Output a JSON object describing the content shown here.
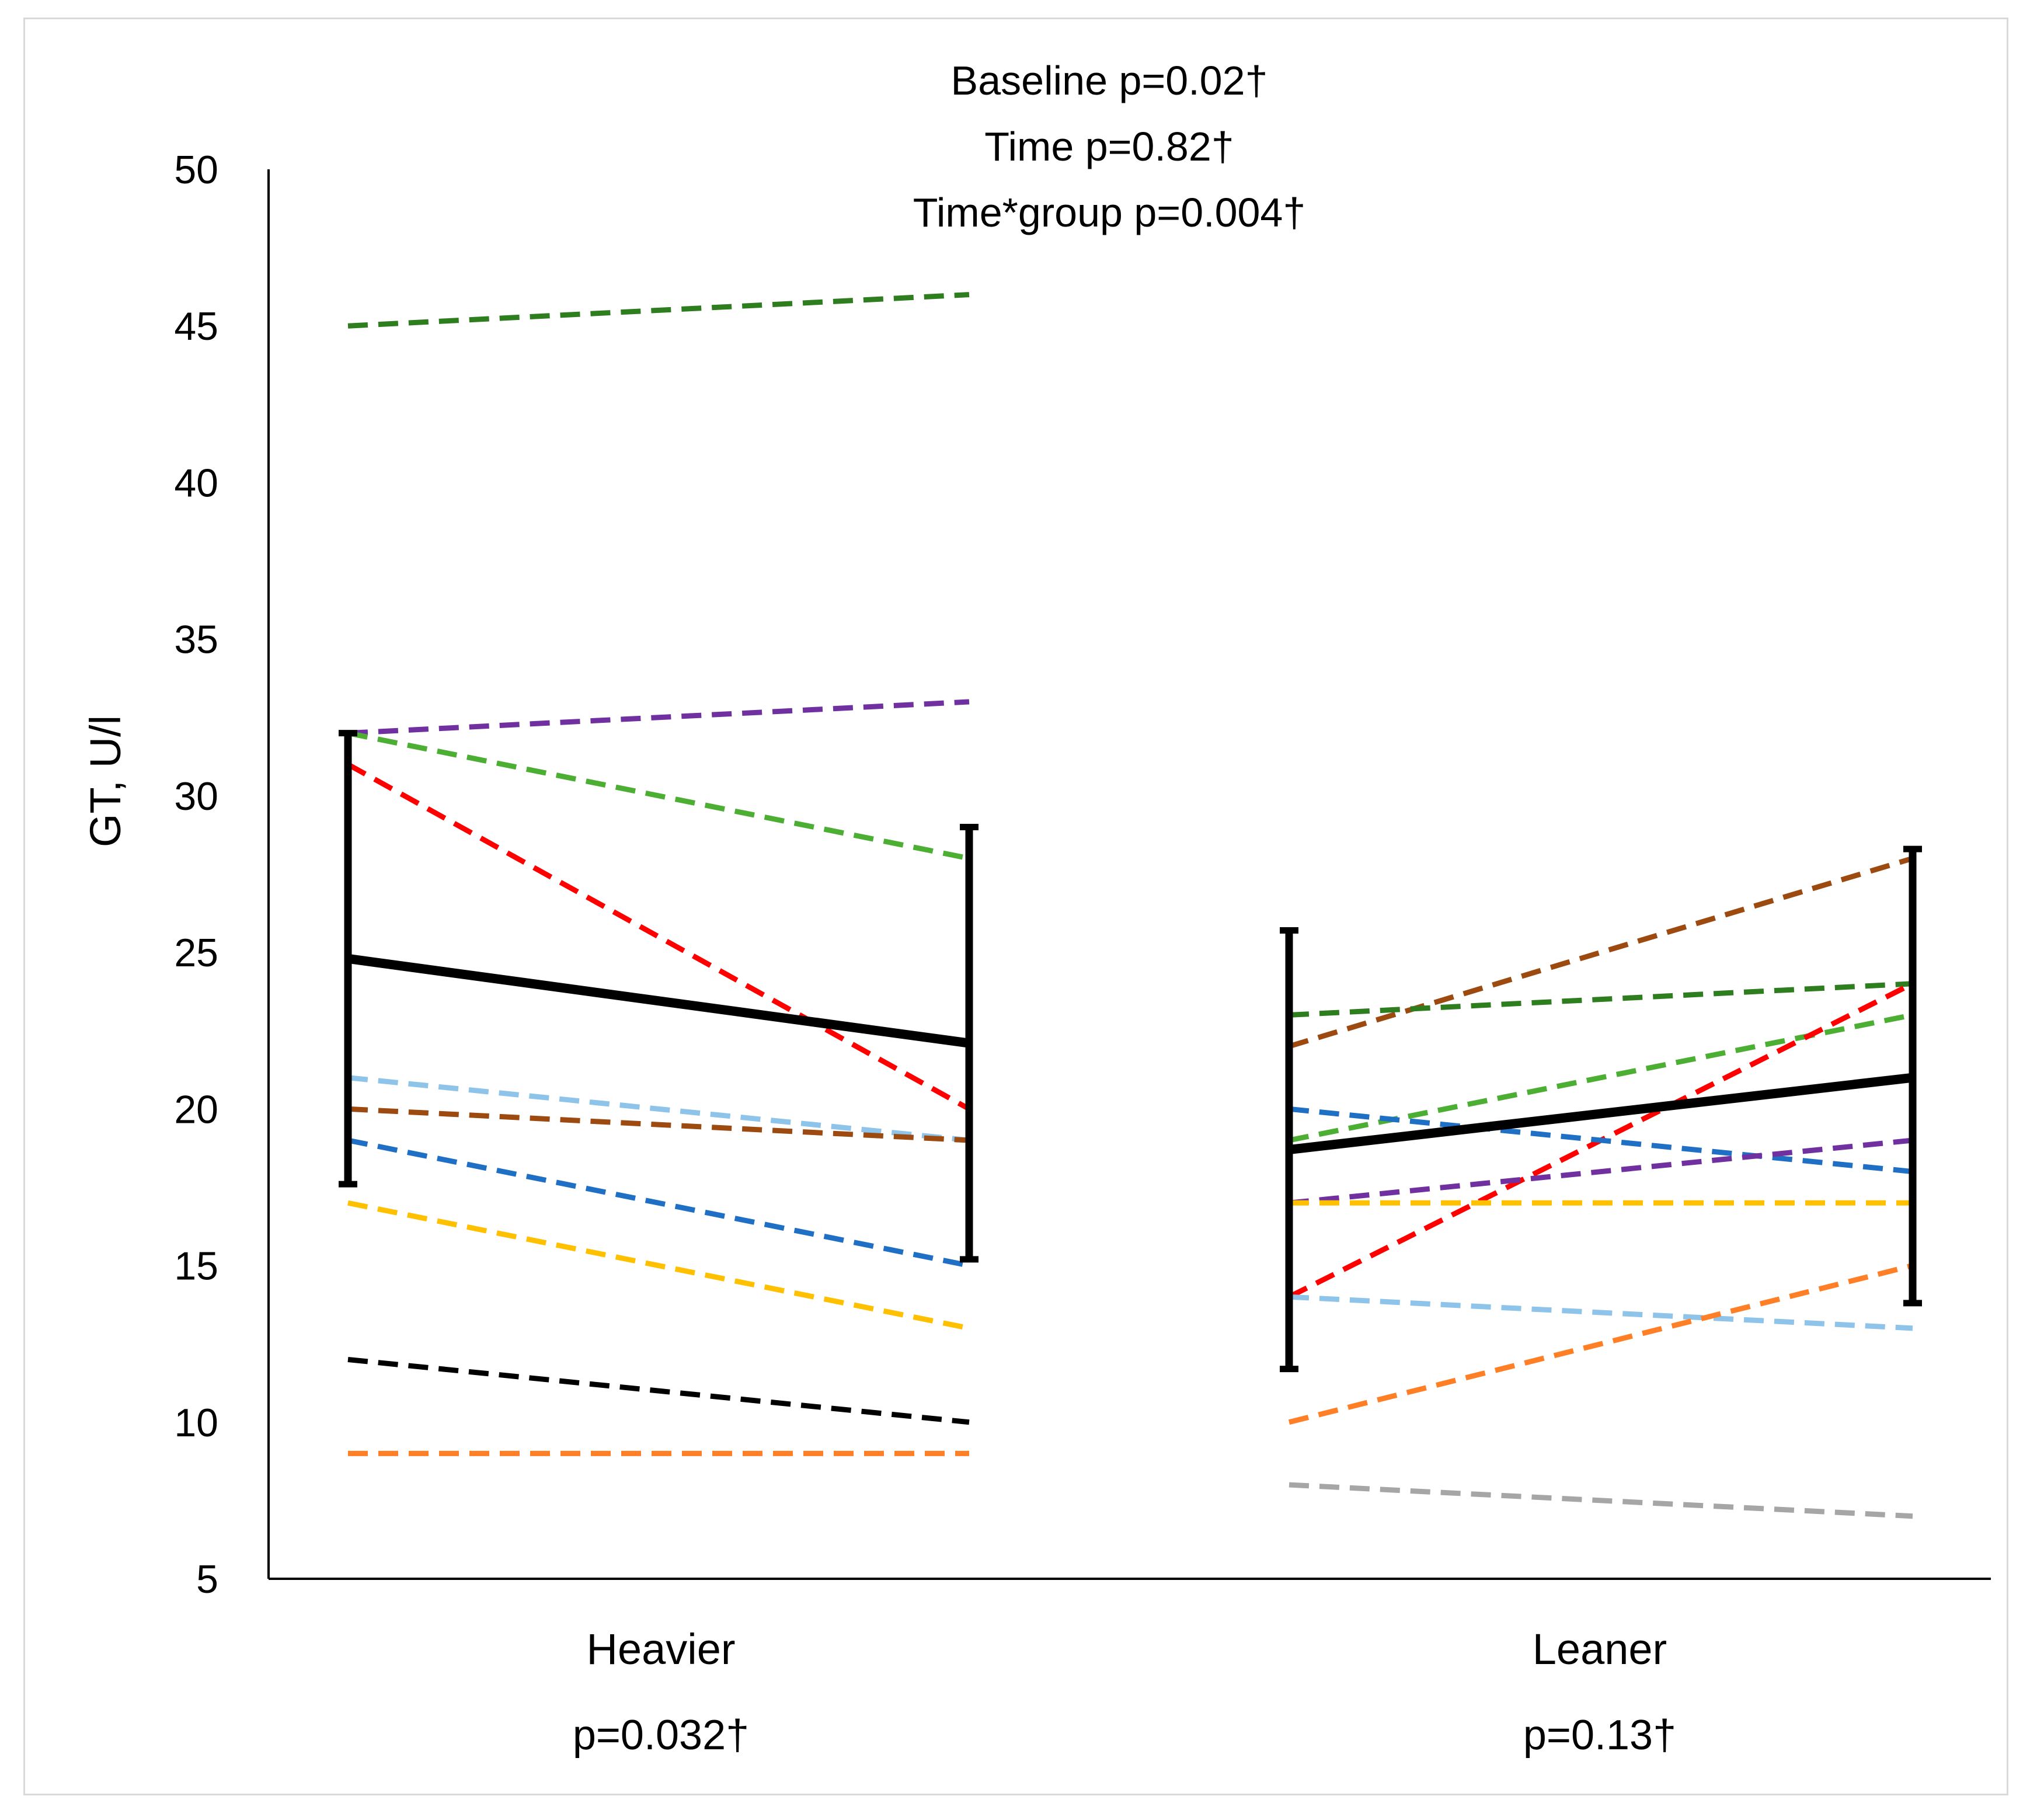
{
  "chart_data": {
    "type": "line",
    "title": "",
    "ylabel": "GT, U/l",
    "xlabel": "",
    "ylim": [
      5,
      50
    ],
    "yticks": [
      5,
      10,
      15,
      20,
      25,
      30,
      35,
      40,
      45,
      50
    ],
    "annotations": [
      "Baseline p=0.02†",
      "Time p=0.82†",
      "Time*group p=0.004†"
    ],
    "groups": [
      {
        "name": "Heavier",
        "p_label": "p=0.032†",
        "mean": [
          24.8,
          22.1
        ],
        "error_low": [
          17.6,
          15.2
        ],
        "error_high": [
          32.0,
          29.0
        ],
        "series": [
          {
            "color": "#2e7d1e",
            "values": [
              45,
              46
            ]
          },
          {
            "color": "#7030a0",
            "values": [
              32,
              33
            ]
          },
          {
            "color": "#4caf34",
            "values": [
              32,
              28
            ]
          },
          {
            "color": "#ff0000",
            "values": [
              31,
              20
            ]
          },
          {
            "color": "#8ec4ea",
            "values": [
              21,
              19
            ]
          },
          {
            "color": "#9c4a10",
            "values": [
              20,
              19
            ]
          },
          {
            "color": "#1f6fc5",
            "values": [
              19,
              15
            ]
          },
          {
            "color": "#ffc000",
            "values": [
              17,
              13
            ]
          },
          {
            "color": "#000000",
            "values": [
              12,
              10
            ]
          },
          {
            "color": "#ff7f27",
            "values": [
              9,
              9
            ]
          }
        ]
      },
      {
        "name": "Leaner",
        "p_label": "p=0.13†",
        "mean": [
          18.7,
          21.0
        ],
        "error_low": [
          11.7,
          13.8
        ],
        "error_high": [
          25.7,
          28.3
        ],
        "series": [
          {
            "color": "#9c4a10",
            "values": [
              22,
              28
            ]
          },
          {
            "color": "#2e7d1e",
            "values": [
              23,
              24
            ]
          },
          {
            "color": "#4caf34",
            "values": [
              19,
              23
            ]
          },
          {
            "color": "#ff0000",
            "values": [
              14,
              24
            ]
          },
          {
            "color": "#1f6fc5",
            "values": [
              20,
              18
            ]
          },
          {
            "color": "#7030a0",
            "values": [
              17,
              19
            ]
          },
          {
            "color": "#ffc000",
            "values": [
              17,
              17
            ]
          },
          {
            "color": "#8ec4ea",
            "values": [
              14,
              13
            ]
          },
          {
            "color": "#ff7f27",
            "values": [
              10,
              15
            ]
          },
          {
            "color": "#a6a6a6",
            "values": [
              8,
              7
            ]
          }
        ]
      }
    ]
  }
}
